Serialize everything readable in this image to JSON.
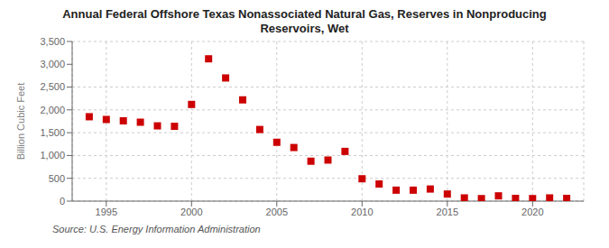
{
  "chart_data": {
    "type": "scatter",
    "title": "Annual Federal Offshore Texas Nonassociated Natural Gas, Reserves in Nonproducing\nReservoirs, Wet",
    "ylabel": "Billion Cubic Feet",
    "annotations": [
      "Source: U.S. Energy Information Administration"
    ],
    "x": [
      1994,
      1995,
      1996,
      1997,
      1998,
      1999,
      2000,
      2001,
      2002,
      2003,
      2004,
      2005,
      2006,
      2007,
      2008,
      2009,
      2010,
      2011,
      2012,
      2013,
      2014,
      2015,
      2016,
      2017,
      2018,
      2019,
      2020,
      2021,
      2022
    ],
    "values": [
      1850,
      1790,
      1760,
      1730,
      1650,
      1640,
      2120,
      3120,
      2700,
      2220,
      1570,
      1290,
      1175,
      875,
      900,
      1090,
      490,
      375,
      240,
      240,
      265,
      155,
      70,
      55,
      115,
      60,
      55,
      70,
      60
    ],
    "color": "#cc0000",
    "marker": "square",
    "xlim": [
      1993.0,
      2023.0
    ],
    "ylim": [
      0,
      3500
    ],
    "xticks": [
      1995,
      2000,
      2005,
      2010,
      2015,
      2020
    ],
    "yticks": [
      0,
      500,
      {
        "value": 1000,
        "label": "1,000"
      },
      {
        "value": 1500,
        "label": "1,500"
      },
      {
        "value": 2000,
        "label": "2,000"
      },
      {
        "value": 2500,
        "label": "2,500"
      },
      {
        "value": 3000,
        "label": "3,000"
      },
      {
        "value": 3500,
        "label": "3,500"
      }
    ],
    "grid": true
  }
}
